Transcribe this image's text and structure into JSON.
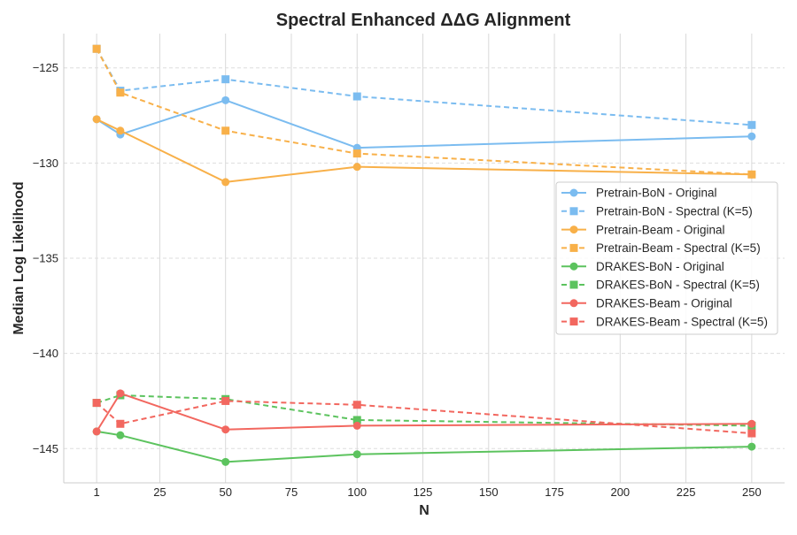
{
  "chart_data": {
    "type": "line",
    "title": "Spectral Enhanced ΔΔG Alignment",
    "xlabel": "N",
    "ylabel": "Median Log Likelihood",
    "xlim": [
      -11.5,
      262.5
    ],
    "ylim": [
      -146.8,
      -123.2
    ],
    "xticks": [
      1,
      25,
      50,
      75,
      100,
      125,
      150,
      175,
      200,
      225,
      250
    ],
    "xtick_labels": [
      "1",
      "25",
      "50",
      "75",
      "100",
      "125",
      "150",
      "175",
      "200",
      "225",
      "250"
    ],
    "yticks": [
      -125,
      -130,
      -135,
      -140,
      -145
    ],
    "ytick_labels": [
      "−125",
      "−130",
      "−135",
      "−140",
      "−145"
    ],
    "grid": true,
    "legend_position": "right",
    "x": [
      1,
      10,
      50,
      100,
      250
    ],
    "series": [
      {
        "name": "Pretrain-BoN - Original",
        "color": "#7bbcf0",
        "marker": "circle",
        "dash": false,
        "values": [
          -127.7,
          -128.5,
          -126.7,
          -129.2,
          -128.6
        ]
      },
      {
        "name": "Pretrain-BoN - Spectral (K=5)",
        "color": "#7bbcf0",
        "marker": "square",
        "dash": true,
        "values": [
          -124.0,
          -126.2,
          -125.6,
          -126.5,
          -128.0
        ]
      },
      {
        "name": "Pretrain-Beam - Original",
        "color": "#f8b049",
        "marker": "circle",
        "dash": false,
        "values": [
          -127.7,
          -128.3,
          -131.0,
          -130.2,
          -130.6
        ]
      },
      {
        "name": "Pretrain-Beam - Spectral (K=5)",
        "color": "#f8b049",
        "marker": "square",
        "dash": true,
        "values": [
          -124.0,
          -126.3,
          -128.3,
          -129.5,
          -130.6
        ]
      },
      {
        "name": "DRAKES-BoN - Original",
        "color": "#5cc35e",
        "marker": "circle",
        "dash": false,
        "values": [
          -144.1,
          -144.3,
          -145.7,
          -145.3,
          -144.9
        ]
      },
      {
        "name": "DRAKES-BoN - Spectral (K=5)",
        "color": "#5cc35e",
        "marker": "square",
        "dash": true,
        "values": [
          -142.6,
          -142.2,
          -142.4,
          -143.5,
          -143.8
        ]
      },
      {
        "name": "DRAKES-Beam - Original",
        "color": "#f2675f",
        "marker": "circle",
        "dash": false,
        "values": [
          -144.1,
          -142.1,
          -144.0,
          -143.8,
          -143.7
        ]
      },
      {
        "name": "DRAKES-Beam - Spectral (K=5)",
        "color": "#f2675f",
        "marker": "square",
        "dash": true,
        "values": [
          -142.6,
          -143.7,
          -142.5,
          -142.7,
          -144.2
        ]
      }
    ]
  }
}
